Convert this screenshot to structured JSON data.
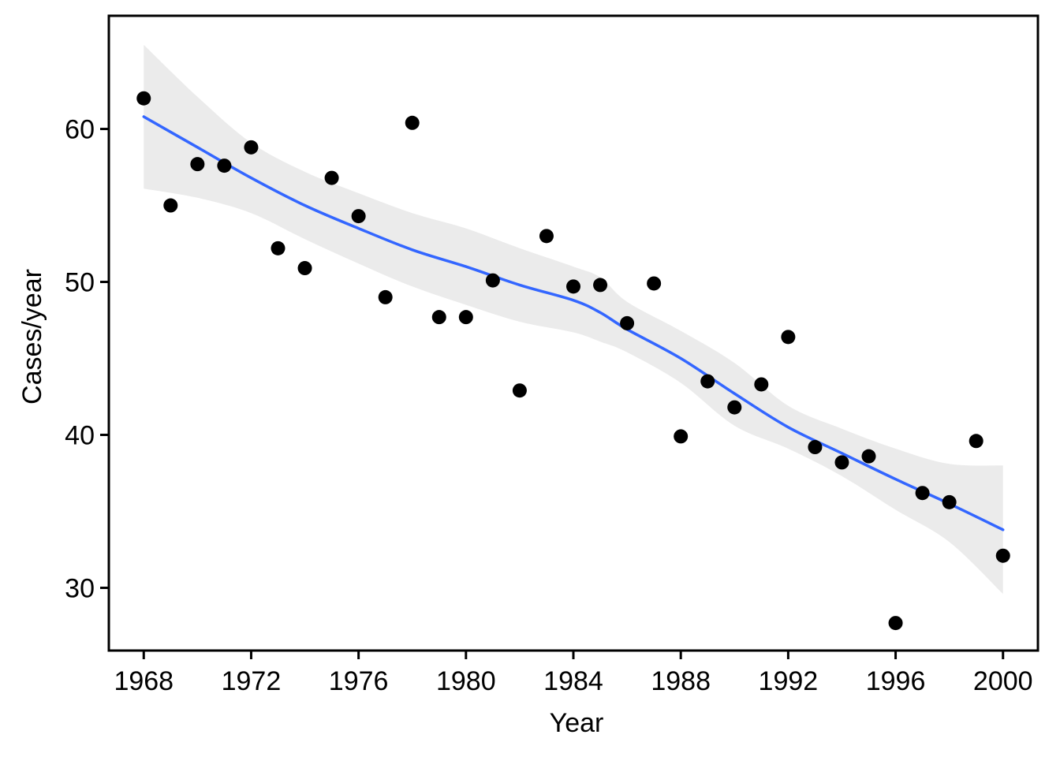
{
  "chart_data": {
    "type": "scatter",
    "xlabel": "Year",
    "ylabel": "Cases/year",
    "xlim": [
      1966.7,
      2001.3
    ],
    "ylim": [
      25.9,
      67.4
    ],
    "xticks": [
      1968,
      1972,
      1976,
      1980,
      1984,
      1988,
      1992,
      1996,
      2000
    ],
    "yticks": [
      30,
      40,
      50,
      60
    ],
    "grid": false,
    "legend": "none",
    "colors": {
      "points": "#000000",
      "smooth_line": "#3366FF",
      "confidence_band": "#EBEBEB",
      "panel_border": "#000000"
    },
    "series": [
      {
        "kind": "points",
        "x": [
          1968,
          1969,
          1970,
          1971,
          1972,
          1973,
          1974,
          1975,
          1976,
          1977,
          1978,
          1979,
          1980,
          1981,
          1982,
          1983,
          1984,
          1985,
          1986,
          1987,
          1988,
          1989,
          1990,
          1991,
          1992,
          1993,
          1994,
          1995,
          1996,
          1997,
          1998,
          1999,
          2000
        ],
        "y": [
          62.0,
          55.0,
          57.7,
          57.6,
          58.8,
          52.2,
          50.9,
          56.8,
          54.3,
          49.0,
          60.4,
          47.7,
          47.7,
          50.1,
          42.9,
          53.0,
          49.7,
          49.8,
          47.3,
          49.9,
          39.9,
          43.5,
          41.8,
          43.3,
          46.4,
          39.2,
          38.2,
          38.6,
          27.7,
          36.2,
          35.6,
          39.6,
          32.1
        ]
      },
      {
        "kind": "smooth",
        "x": [
          1968,
          1970,
          1972,
          1974,
          1976,
          1978,
          1980,
          1982,
          1984,
          1985,
          1986,
          1988,
          1990,
          1992,
          1994,
          1996,
          1998,
          2000
        ],
        "y": [
          60.8,
          58.8,
          56.8,
          55.0,
          53.5,
          52.1,
          51.0,
          49.8,
          48.8,
          48.0,
          46.9,
          45.0,
          42.7,
          40.5,
          38.8,
          37.1,
          35.5,
          33.8
        ],
        "lower": [
          56.1,
          55.5,
          54.5,
          52.8,
          51.2,
          49.7,
          48.5,
          47.4,
          46.7,
          46.1,
          45.4,
          43.4,
          40.6,
          39.1,
          37.3,
          35.1,
          33.0,
          29.6
        ],
        "upper": [
          65.5,
          62.1,
          59.1,
          57.2,
          55.8,
          54.5,
          53.5,
          52.2,
          51.0,
          50.3,
          48.7,
          46.8,
          44.7,
          41.9,
          40.4,
          39.1,
          38.1,
          38.0
        ]
      }
    ]
  }
}
